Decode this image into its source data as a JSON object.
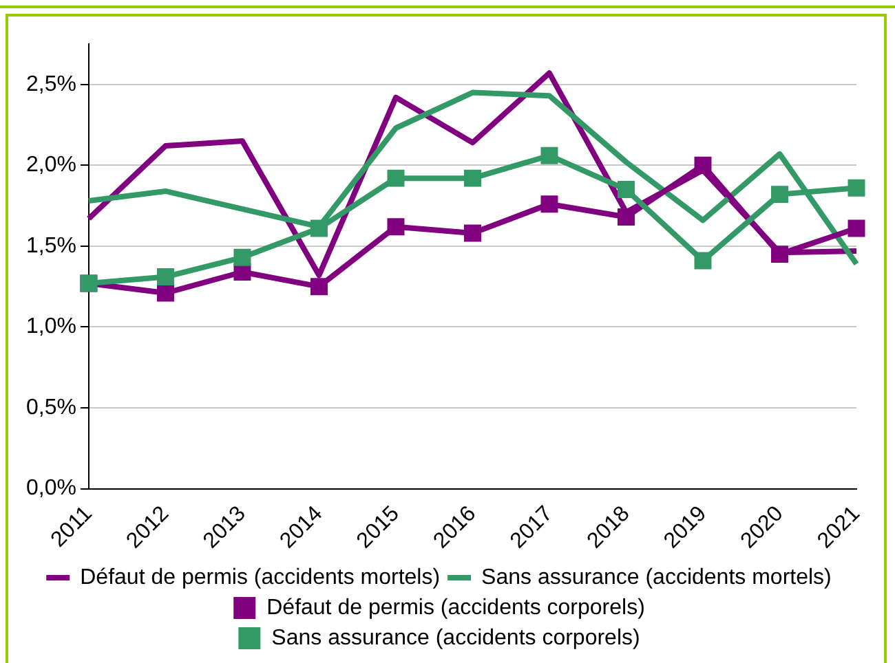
{
  "chart_data": {
    "type": "line",
    "categories": [
      "2011",
      "2012",
      "2013",
      "2014",
      "2015",
      "2016",
      "2017",
      "2018",
      "2019",
      "2020",
      "2021"
    ],
    "series": [
      {
        "name": "Défaut de permis (accidents mortels)",
        "color": "#800080",
        "marker": "none",
        "values": [
          1.67,
          2.12,
          2.15,
          1.32,
          2.42,
          2.14,
          2.57,
          1.71,
          1.97,
          1.46,
          1.47
        ]
      },
      {
        "name": "Sans assurance (accidents mortels)",
        "color": "#339966",
        "marker": "none",
        "values": [
          1.78,
          1.84,
          1.73,
          1.62,
          2.23,
          2.45,
          2.43,
          2.02,
          1.66,
          2.07,
          1.39
        ]
      },
      {
        "name": "Défaut de permis (accidents corporels)",
        "color": "#800080",
        "marker": "square",
        "values": [
          1.27,
          1.21,
          1.34,
          1.25,
          1.62,
          1.58,
          1.76,
          1.68,
          2.0,
          1.45,
          1.61
        ]
      },
      {
        "name": "Sans assurance (accidents corporels)",
        "color": "#339966",
        "marker": "square",
        "values": [
          1.27,
          1.31,
          1.43,
          1.61,
          1.92,
          1.92,
          2.06,
          1.85,
          1.41,
          1.82,
          1.86
        ]
      }
    ],
    "ylim": [
      0,
      2.75
    ],
    "yticks": [
      {
        "value": 0,
        "label": "0,0%"
      },
      {
        "value": 0.5,
        "label": "0,5%"
      },
      {
        "value": 1,
        "label": "1,0%"
      },
      {
        "value": 1.5,
        "label": "1,5%"
      },
      {
        "value": 2,
        "label": "2,0%"
      },
      {
        "value": 2.5,
        "label": "2,5%"
      }
    ],
    "grid": "y",
    "legend": "bottom",
    "line_style": "solid"
  }
}
